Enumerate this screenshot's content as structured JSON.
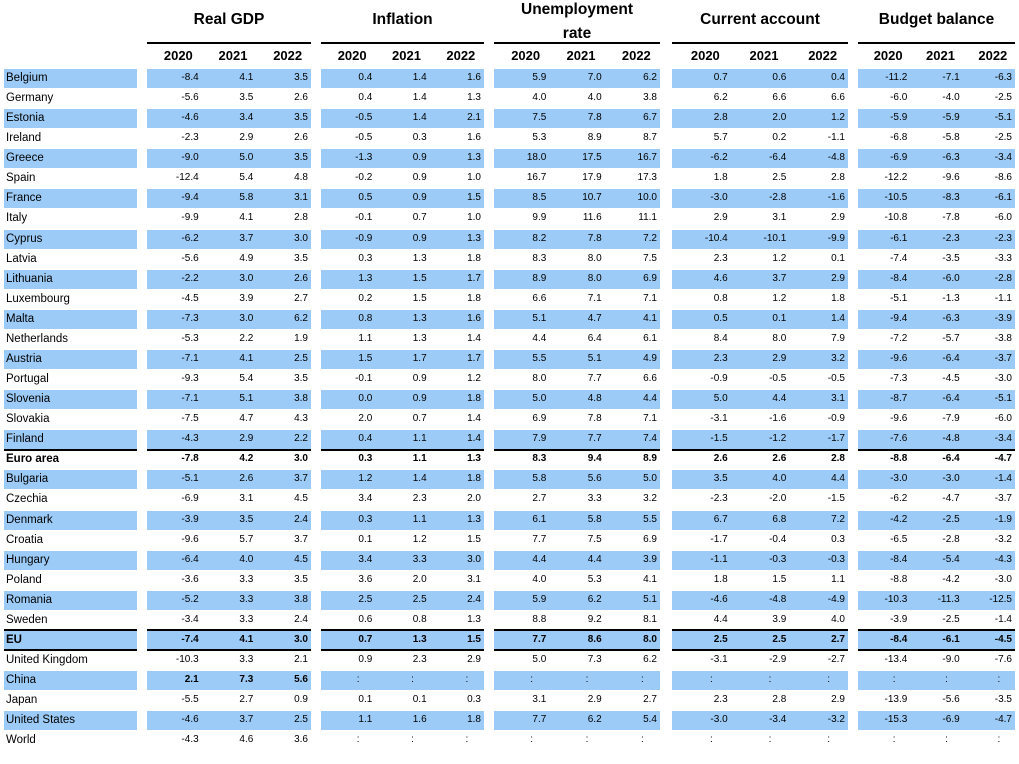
{
  "groups": [
    {
      "title_lines": [
        "Real GDP"
      ]
    },
    {
      "title_lines": [
        "Inflation"
      ]
    },
    {
      "title_lines": [
        "Unemployment",
        "rate"
      ]
    },
    {
      "title_lines": [
        "Current account"
      ]
    },
    {
      "title_lines": [
        "Budget balance"
      ]
    }
  ],
  "years": [
    "2020",
    "2021",
    "2022"
  ],
  "rows": [
    {
      "name": "Belgium",
      "hl": true,
      "v": [
        [
          "-8.4",
          "4.1",
          "3.5"
        ],
        [
          "0.4",
          "1.4",
          "1.6"
        ],
        [
          "5.9",
          "7.0",
          "6.2"
        ],
        [
          "0.7",
          "0.6",
          "0.4"
        ],
        [
          "-11.2",
          "-7.1",
          "-6.3"
        ]
      ]
    },
    {
      "name": "Germany",
      "hl": false,
      "v": [
        [
          "-5.6",
          "3.5",
          "2.6"
        ],
        [
          "0.4",
          "1.4",
          "1.3"
        ],
        [
          "4.0",
          "4.0",
          "3.8"
        ],
        [
          "6.2",
          "6.6",
          "6.6"
        ],
        [
          "-6.0",
          "-4.0",
          "-2.5"
        ]
      ]
    },
    {
      "name": "Estonia",
      "hl": true,
      "v": [
        [
          "-4.6",
          "3.4",
          "3.5"
        ],
        [
          "-0.5",
          "1.4",
          "2.1"
        ],
        [
          "7.5",
          "7.8",
          "6.7"
        ],
        [
          "2.8",
          "2.0",
          "1.2"
        ],
        [
          "-5.9",
          "-5.9",
          "-5.1"
        ]
      ]
    },
    {
      "name": "Ireland",
      "hl": false,
      "v": [
        [
          "-2.3",
          "2.9",
          "2.6"
        ],
        [
          "-0.5",
          "0.3",
          "1.6"
        ],
        [
          "5.3",
          "8.9",
          "8.7"
        ],
        [
          "5.7",
          "0.2",
          "-1.1"
        ],
        [
          "-6.8",
          "-5.8",
          "-2.5"
        ]
      ]
    },
    {
      "name": "Greece",
      "hl": true,
      "v": [
        [
          "-9.0",
          "5.0",
          "3.5"
        ],
        [
          "-1.3",
          "0.9",
          "1.3"
        ],
        [
          "18.0",
          "17.5",
          "16.7"
        ],
        [
          "-6.2",
          "-6.4",
          "-4.8"
        ],
        [
          "-6.9",
          "-6.3",
          "-3.4"
        ]
      ]
    },
    {
      "name": "Spain",
      "hl": false,
      "v": [
        [
          "-12.4",
          "5.4",
          "4.8"
        ],
        [
          "-0.2",
          "0.9",
          "1.0"
        ],
        [
          "16.7",
          "17.9",
          "17.3"
        ],
        [
          "1.8",
          "2.5",
          "2.8"
        ],
        [
          "-12.2",
          "-9.6",
          "-8.6"
        ]
      ]
    },
    {
      "name": "France",
      "hl": true,
      "v": [
        [
          "-9.4",
          "5.8",
          "3.1"
        ],
        [
          "0.5",
          "0.9",
          "1.5"
        ],
        [
          "8.5",
          "10.7",
          "10.0"
        ],
        [
          "-3.0",
          "-2.8",
          "-1.6"
        ],
        [
          "-10.5",
          "-8.3",
          "-6.1"
        ]
      ]
    },
    {
      "name": "Italy",
      "hl": false,
      "v": [
        [
          "-9.9",
          "4.1",
          "2.8"
        ],
        [
          "-0.1",
          "0.7",
          "1.0"
        ],
        [
          "9.9",
          "11.6",
          "11.1"
        ],
        [
          "2.9",
          "3.1",
          "2.9"
        ],
        [
          "-10.8",
          "-7.8",
          "-6.0"
        ]
      ]
    },
    {
      "name": "Cyprus",
      "hl": true,
      "v": [
        [
          "-6.2",
          "3.7",
          "3.0"
        ],
        [
          "-0.9",
          "0.9",
          "1.3"
        ],
        [
          "8.2",
          "7.8",
          "7.2"
        ],
        [
          "-10.4",
          "-10.1",
          "-9.9"
        ],
        [
          "-6.1",
          "-2.3",
          "-2.3"
        ]
      ]
    },
    {
      "name": "Latvia",
      "hl": false,
      "v": [
        [
          "-5.6",
          "4.9",
          "3.5"
        ],
        [
          "0.3",
          "1.3",
          "1.8"
        ],
        [
          "8.3",
          "8.0",
          "7.5"
        ],
        [
          "2.3",
          "1.2",
          "0.1"
        ],
        [
          "-7.4",
          "-3.5",
          "-3.3"
        ]
      ]
    },
    {
      "name": "Lithuania",
      "hl": true,
      "v": [
        [
          "-2.2",
          "3.0",
          "2.6"
        ],
        [
          "1.3",
          "1.5",
          "1.7"
        ],
        [
          "8.9",
          "8.0",
          "6.9"
        ],
        [
          "4.6",
          "3.7",
          "2.9"
        ],
        [
          "-8.4",
          "-6.0",
          "-2.8"
        ]
      ]
    },
    {
      "name": "Luxembourg",
      "hl": false,
      "v": [
        [
          "-4.5",
          "3.9",
          "2.7"
        ],
        [
          "0.2",
          "1.5",
          "1.8"
        ],
        [
          "6.6",
          "7.1",
          "7.1"
        ],
        [
          "0.8",
          "1.2",
          "1.8"
        ],
        [
          "-5.1",
          "-1.3",
          "-1.1"
        ]
      ]
    },
    {
      "name": "Malta",
      "hl": true,
      "v": [
        [
          "-7.3",
          "3.0",
          "6.2"
        ],
        [
          "0.8",
          "1.3",
          "1.6"
        ],
        [
          "5.1",
          "4.7",
          "4.1"
        ],
        [
          "0.5",
          "0.1",
          "1.4"
        ],
        [
          "-9.4",
          "-6.3",
          "-3.9"
        ]
      ]
    },
    {
      "name": "Netherlands",
      "hl": false,
      "v": [
        [
          "-5.3",
          "2.2",
          "1.9"
        ],
        [
          "1.1",
          "1.3",
          "1.4"
        ],
        [
          "4.4",
          "6.4",
          "6.1"
        ],
        [
          "8.4",
          "8.0",
          "7.9"
        ],
        [
          "-7.2",
          "-5.7",
          "-3.8"
        ]
      ]
    },
    {
      "name": "Austria",
      "hl": true,
      "v": [
        [
          "-7.1",
          "4.1",
          "2.5"
        ],
        [
          "1.5",
          "1.7",
          "1.7"
        ],
        [
          "5.5",
          "5.1",
          "4.9"
        ],
        [
          "2.3",
          "2.9",
          "3.2"
        ],
        [
          "-9.6",
          "-6.4",
          "-3.7"
        ]
      ]
    },
    {
      "name": "Portugal",
      "hl": false,
      "v": [
        [
          "-9.3",
          "5.4",
          "3.5"
        ],
        [
          "-0.1",
          "0.9",
          "1.2"
        ],
        [
          "8.0",
          "7.7",
          "6.6"
        ],
        [
          "-0.9",
          "-0.5",
          "-0.5"
        ],
        [
          "-7.3",
          "-4.5",
          "-3.0"
        ]
      ]
    },
    {
      "name": "Slovenia",
      "hl": true,
      "v": [
        [
          "-7.1",
          "5.1",
          "3.8"
        ],
        [
          "0.0",
          "0.9",
          "1.8"
        ],
        [
          "5.0",
          "4.8",
          "4.4"
        ],
        [
          "5.0",
          "4.4",
          "3.1"
        ],
        [
          "-8.7",
          "-6.4",
          "-5.1"
        ]
      ]
    },
    {
      "name": "Slovakia",
      "hl": false,
      "v": [
        [
          "-7.5",
          "4.7",
          "4.3"
        ],
        [
          "2.0",
          "0.7",
          "1.4"
        ],
        [
          "6.9",
          "7.8",
          "7.1"
        ],
        [
          "-3.1",
          "-1.6",
          "-0.9"
        ],
        [
          "-9.6",
          "-7.9",
          "-6.0"
        ]
      ]
    },
    {
      "name": "Finland",
      "hl": true,
      "v": [
        [
          "-4.3",
          "2.9",
          "2.2"
        ],
        [
          "0.4",
          "1.1",
          "1.4"
        ],
        [
          "7.9",
          "7.7",
          "7.4"
        ],
        [
          "-1.5",
          "-1.2",
          "-1.7"
        ],
        [
          "-7.6",
          "-4.8",
          "-3.4"
        ]
      ]
    },
    {
      "name": "Euro area",
      "hl": false,
      "bold": true,
      "v": [
        [
          "-7.8",
          "4.2",
          "3.0"
        ],
        [
          "0.3",
          "1.1",
          "1.3"
        ],
        [
          "8.3",
          "9.4",
          "8.9"
        ],
        [
          "2.6",
          "2.6",
          "2.8"
        ],
        [
          "-8.8",
          "-6.4",
          "-4.7"
        ]
      ]
    },
    {
      "name": "Bulgaria",
      "hl": true,
      "v": [
        [
          "-5.1",
          "2.6",
          "3.7"
        ],
        [
          "1.2",
          "1.4",
          "1.8"
        ],
        [
          "5.8",
          "5.6",
          "5.0"
        ],
        [
          "3.5",
          "4.0",
          "4.4"
        ],
        [
          "-3.0",
          "-3.0",
          "-1.4"
        ]
      ]
    },
    {
      "name": "Czechia",
      "hl": false,
      "v": [
        [
          "-6.9",
          "3.1",
          "4.5"
        ],
        [
          "3.4",
          "2.3",
          "2.0"
        ],
        [
          "2.7",
          "3.3",
          "3.2"
        ],
        [
          "-2.3",
          "-2.0",
          "-1.5"
        ],
        [
          "-6.2",
          "-4.7",
          "-3.7"
        ]
      ]
    },
    {
      "name": "Denmark",
      "hl": true,
      "v": [
        [
          "-3.9",
          "3.5",
          "2.4"
        ],
        [
          "0.3",
          "1.1",
          "1.3"
        ],
        [
          "6.1",
          "5.8",
          "5.5"
        ],
        [
          "6.7",
          "6.8",
          "7.2"
        ],
        [
          "-4.2",
          "-2.5",
          "-1.9"
        ]
      ]
    },
    {
      "name": "Croatia",
      "hl": false,
      "v": [
        [
          "-9.6",
          "5.7",
          "3.7"
        ],
        [
          "0.1",
          "1.2",
          "1.5"
        ],
        [
          "7.7",
          "7.5",
          "6.9"
        ],
        [
          "-1.7",
          "-0.4",
          "0.3"
        ],
        [
          "-6.5",
          "-2.8",
          "-3.2"
        ]
      ]
    },
    {
      "name": "Hungary",
      "hl": true,
      "v": [
        [
          "-6.4",
          "4.0",
          "4.5"
        ],
        [
          "3.4",
          "3.3",
          "3.0"
        ],
        [
          "4.4",
          "4.4",
          "3.9"
        ],
        [
          "-1.1",
          "-0.3",
          "-0.3"
        ],
        [
          "-8.4",
          "-5.4",
          "-4.3"
        ]
      ]
    },
    {
      "name": "Poland",
      "hl": false,
      "v": [
        [
          "-3.6",
          "3.3",
          "3.5"
        ],
        [
          "3.6",
          "2.0",
          "3.1"
        ],
        [
          "4.0",
          "5.3",
          "4.1"
        ],
        [
          "1.8",
          "1.5",
          "1.1"
        ],
        [
          "-8.8",
          "-4.2",
          "-3.0"
        ]
      ]
    },
    {
      "name": "Romania",
      "hl": true,
      "v": [
        [
          "-5.2",
          "3.3",
          "3.8"
        ],
        [
          "2.5",
          "2.5",
          "2.4"
        ],
        [
          "5.9",
          "6.2",
          "5.1"
        ],
        [
          "-4.6",
          "-4.8",
          "-4.9"
        ],
        [
          "-10.3",
          "-11.3",
          "-12.5"
        ]
      ]
    },
    {
      "name": "Sweden",
      "hl": false,
      "v": [
        [
          "-3.4",
          "3.3",
          "2.4"
        ],
        [
          "0.6",
          "0.8",
          "1.3"
        ],
        [
          "8.8",
          "9.2",
          "8.1"
        ],
        [
          "4.4",
          "3.9",
          "4.0"
        ],
        [
          "-3.9",
          "-2.5",
          "-1.4"
        ]
      ]
    },
    {
      "name": "EU",
      "hl": true,
      "bold": true,
      "v": [
        [
          "-7.4",
          "4.1",
          "3.0"
        ],
        [
          "0.7",
          "1.3",
          "1.5"
        ],
        [
          "7.7",
          "8.6",
          "8.0"
        ],
        [
          "2.5",
          "2.5",
          "2.7"
        ],
        [
          "-8.4",
          "-6.1",
          "-4.5"
        ]
      ]
    },
    {
      "name": "United Kingdom",
      "hl": false,
      "v": [
        [
          "-10.3",
          "3.3",
          "2.1"
        ],
        [
          "0.9",
          "2.3",
          "2.9"
        ],
        [
          "5.0",
          "7.3",
          "6.2"
        ],
        [
          "-3.1",
          "-2.9",
          "-2.7"
        ],
        [
          "-13.4",
          "-9.0",
          "-7.6"
        ]
      ]
    },
    {
      "name": "China",
      "hl": true,
      "boldgdp": true,
      "v": [
        [
          "2.1",
          "7.3",
          "5.6"
        ],
        [
          ":",
          ":",
          ":"
        ],
        [
          ":",
          ":",
          ":"
        ],
        [
          ":",
          ":",
          ":"
        ],
        [
          ":",
          ":",
          ":"
        ]
      ]
    },
    {
      "name": "Japan",
      "hl": false,
      "v": [
        [
          "-5.5",
          "2.7",
          "0.9"
        ],
        [
          "0.1",
          "0.1",
          "0.3"
        ],
        [
          "3.1",
          "2.9",
          "2.7"
        ],
        [
          "2.3",
          "2.8",
          "2.9"
        ],
        [
          "-13.9",
          "-5.6",
          "-3.5"
        ]
      ]
    },
    {
      "name": "United States",
      "hl": true,
      "v": [
        [
          "-4.6",
          "3.7",
          "2.5"
        ],
        [
          "1.1",
          "1.6",
          "1.8"
        ],
        [
          "7.7",
          "6.2",
          "5.4"
        ],
        [
          "-3.0",
          "-3.4",
          "-3.2"
        ],
        [
          "-15.3",
          "-6.9",
          "-4.7"
        ]
      ]
    },
    {
      "name": "World",
      "hl": false,
      "v": [
        [
          "-4.3",
          "4.6",
          "3.6"
        ],
        [
          ":",
          ":",
          ":"
        ],
        [
          ":",
          ":",
          ":"
        ],
        [
          ":",
          ":",
          ":"
        ],
        [
          ":",
          ":",
          ":"
        ]
      ]
    }
  ]
}
